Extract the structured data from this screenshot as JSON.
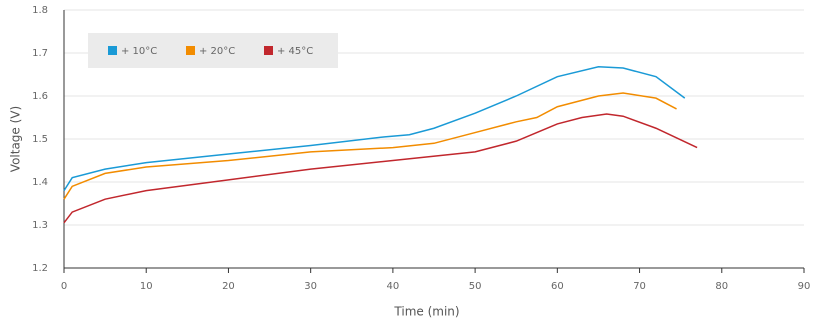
{
  "chart_data": {
    "type": "line",
    "x_label": "Time (min)",
    "y_label": "Voltage (V)",
    "xlim": [
      0,
      90
    ],
    "xticks": [
      0,
      10,
      20,
      30,
      40,
      50,
      60,
      70,
      80,
      90
    ],
    "ylim": [
      1.2,
      1.8
    ],
    "yticks": [
      1.2,
      1.3,
      1.4,
      1.5,
      1.6,
      1.7,
      1.8
    ],
    "grid": true,
    "legend": "upper left",
    "series": [
      {
        "name": "+ 10°C",
        "color": "#1a9ad6",
        "x": [
          0,
          1,
          5,
          10,
          20,
          30,
          39,
          42,
          45,
          50,
          55,
          60,
          65,
          68,
          72,
          75.5
        ],
        "values": [
          1.38,
          1.41,
          1.43,
          1.445,
          1.465,
          1.485,
          1.505,
          1.51,
          1.525,
          1.56,
          1.6,
          1.645,
          1.668,
          1.665,
          1.645,
          1.595
        ]
      },
      {
        "name": "+ 20°C",
        "color": "#f28c00",
        "x": [
          0,
          1,
          5,
          10,
          20,
          30,
          40,
          45,
          50,
          55,
          57.5,
          60,
          65,
          68,
          72,
          74.5
        ],
        "values": [
          1.36,
          1.39,
          1.42,
          1.435,
          1.45,
          1.47,
          1.48,
          1.49,
          1.515,
          1.54,
          1.55,
          1.575,
          1.6,
          1.607,
          1.595,
          1.57
        ]
      },
      {
        "name": "+ 45°C",
        "color": "#c1272d",
        "x": [
          0,
          1,
          5,
          10,
          20,
          30,
          40,
          50,
          55,
          60,
          63,
          66,
          68,
          72,
          77
        ],
        "values": [
          1.305,
          1.33,
          1.36,
          1.38,
          1.405,
          1.43,
          1.45,
          1.47,
          1.495,
          1.535,
          1.55,
          1.558,
          1.553,
          1.525,
          1.48
        ]
      }
    ]
  }
}
